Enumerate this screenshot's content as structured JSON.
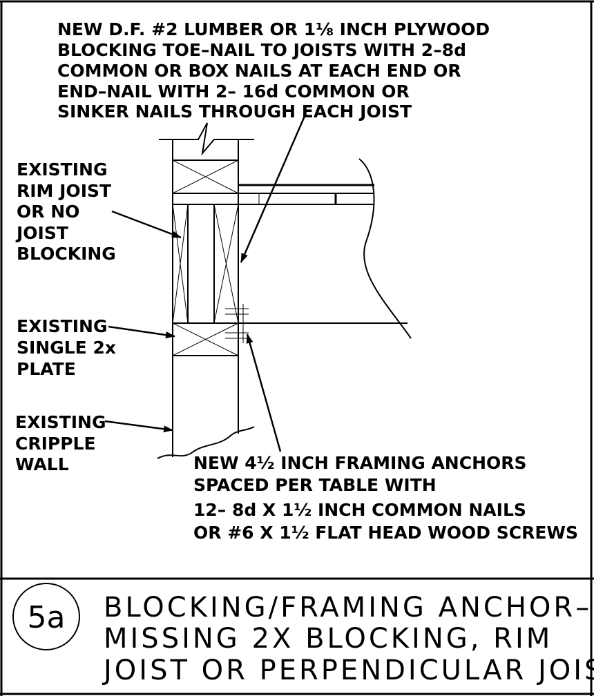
{
  "notes": {
    "blocking": [
      "NEW D.F. #2 LUMBER OR 1⅛ INCH PLYWOOD",
      "BLOCKING TOE–NAIL TO JOISTS WITH 2–8d",
      "COMMON OR BOX NAILS AT EACH END OR",
      "END–NAIL WITH 2– 16d COMMON OR",
      "SINKER NAILS THROUGH EACH JOIST"
    ],
    "rim_joist": [
      "EXISTING",
      "RIM JOIST",
      "OR NO",
      "JOIST",
      "BLOCKING"
    ],
    "plate": [
      "EXISTING",
      "SINGLE 2x",
      "PLATE"
    ],
    "cripple_wall": [
      "EXISTING",
      "CRIPPLE",
      "WALL"
    ],
    "anchors": [
      "NEW 4½ INCH FRAMING ANCHORS",
      "SPACED PER TABLE WITH",
      "12– 8d X 1½ INCH COMMON NAILS",
      "OR #6 X 1½ FLAT HEAD WOOD SCREWS"
    ]
  },
  "title_block": {
    "detail_number": "5a",
    "title_lines": [
      "BLOCKING/FRAMING ANCHOR–",
      "MISSING 2X BLOCKING, RIM",
      "JOIST OR PERPENDICULAR JOIST"
    ]
  }
}
